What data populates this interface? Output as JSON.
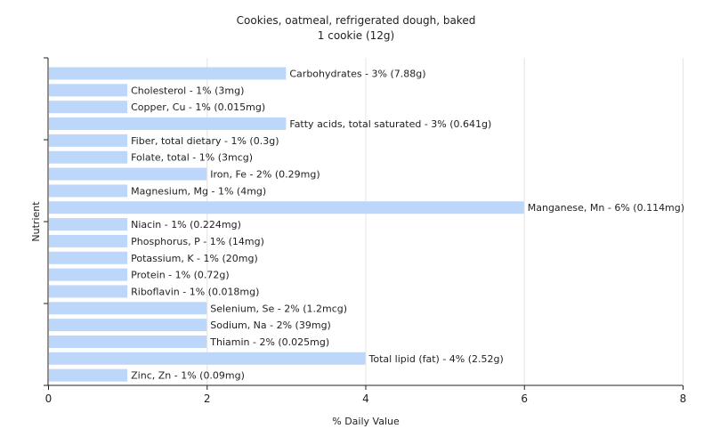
{
  "chart_data": {
    "type": "bar",
    "orientation": "horizontal",
    "title": "Cookies, oatmeal, refrigerated dough, baked",
    "subtitle": "1 cookie (12g)",
    "xlabel": "% Daily Value",
    "ylabel": "Nutrient",
    "xlim": [
      0,
      8
    ],
    "xticks": [
      "0",
      "2",
      "4",
      "6",
      "8"
    ],
    "grid": true,
    "bar_color": "#bdd7fa",
    "categories": [
      "Carbohydrates",
      "Cholesterol",
      "Copper, Cu",
      "Fatty acids, total saturated",
      "Fiber, total dietary",
      "Folate, total",
      "Iron, Fe",
      "Magnesium, Mg",
      "Manganese, Mn",
      "Niacin",
      "Phosphorus, P",
      "Potassium, K",
      "Protein",
      "Riboflavin",
      "Selenium, Se",
      "Sodium, Na",
      "Thiamin",
      "Total lipid (fat)",
      "Zinc, Zn"
    ],
    "values": [
      3,
      1,
      1,
      3,
      1,
      1,
      2,
      1,
      6,
      1,
      1,
      1,
      1,
      1,
      2,
      2,
      2,
      4,
      1
    ],
    "labels": [
      "Carbohydrates - 3% (7.88g)",
      "Cholesterol - 1% (3mg)",
      "Copper, Cu - 1% (0.015mg)",
      "Fatty acids, total saturated - 3% (0.641g)",
      "Fiber, total dietary - 1% (0.3g)",
      "Folate, total - 1% (3mcg)",
      "Iron, Fe - 2% (0.29mg)",
      "Magnesium, Mg - 1% (4mg)",
      "Manganese, Mn - 6% (0.114mg)",
      "Niacin - 1% (0.224mg)",
      "Phosphorus, P - 1% (14mg)",
      "Potassium, K - 1% (20mg)",
      "Protein - 1% (0.72g)",
      "Riboflavin - 1% (0.018mg)",
      "Selenium, Se - 2% (1.2mcg)",
      "Sodium, Na - 2% (39mg)",
      "Thiamin - 2% (0.025mg)",
      "Total lipid (fat) - 4% (2.52g)",
      "Zinc, Zn - 1% (0.09mg)"
    ]
  }
}
